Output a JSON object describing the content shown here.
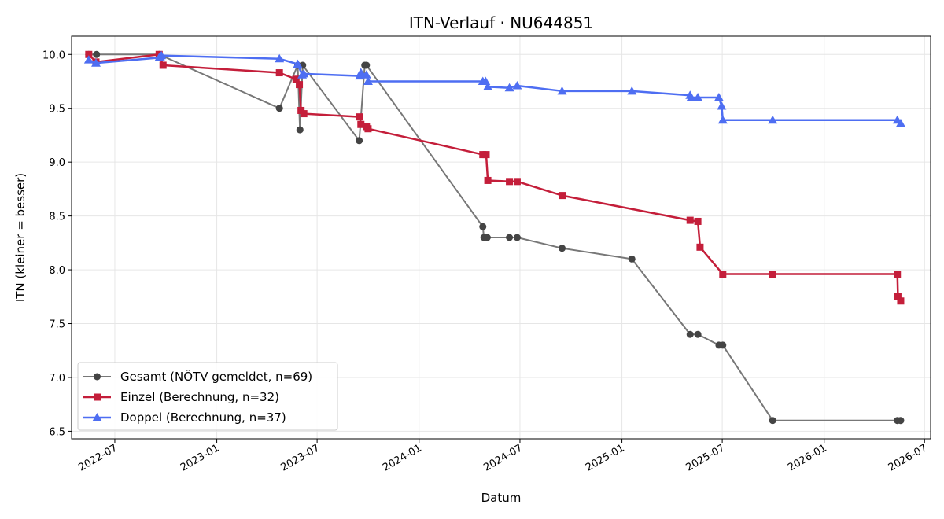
{
  "chart_data": {
    "type": "line",
    "title": "ITN-Verlauf · NU644851",
    "xlabel": "Datum",
    "ylabel": "ITN  (kleiner = besser)",
    "xlim": [
      "2022-04-14",
      "2026-07-12"
    ],
    "ylim": [
      6.43,
      10.17
    ],
    "x_ticks": [
      "2022-07-01",
      "2023-01-01",
      "2023-07-01",
      "2024-01-01",
      "2024-07-01",
      "2025-01-01",
      "2025-07-01",
      "2026-01-01",
      "2026-07-01"
    ],
    "x_tick_labels": [
      "2022-07",
      "2023-01",
      "2023-07",
      "2024-01",
      "2024-07",
      "2025-01",
      "2025-07",
      "2026-01",
      "2026-07"
    ],
    "y_ticks": [
      6.5,
      7.0,
      7.5,
      8.0,
      8.5,
      9.0,
      9.5,
      10.0
    ],
    "y_tick_labels": [
      "6.5",
      "7.0",
      "7.5",
      "8.0",
      "8.5",
      "9.0",
      "9.5",
      "10.0"
    ],
    "grid": true,
    "legend_position": "lower-left",
    "series": [
      {
        "name": "Gesamt (NÖTV gemeldet, n=69)",
        "color": "#777777",
        "marker_color": "#444444",
        "marker": "circle",
        "points": [
          [
            "2022-05-15",
            10.0
          ],
          [
            "2022-05-29",
            10.0
          ],
          [
            "2022-09-19",
            10.0
          ],
          [
            "2023-04-24",
            9.5
          ],
          [
            "2023-05-27",
            9.9
          ],
          [
            "2023-05-31",
            9.3
          ],
          [
            "2023-06-05",
            9.9
          ],
          [
            "2023-09-15",
            9.2
          ],
          [
            "2023-09-25",
            9.9
          ],
          [
            "2023-09-28",
            9.9
          ],
          [
            "2024-04-25",
            8.4
          ],
          [
            "2024-04-27",
            8.3
          ],
          [
            "2024-05-03",
            8.3
          ],
          [
            "2024-06-12",
            8.3
          ],
          [
            "2024-06-26",
            8.3
          ],
          [
            "2024-09-15",
            8.2
          ],
          [
            "2025-01-19",
            8.1
          ],
          [
            "2025-05-04",
            7.4
          ],
          [
            "2025-05-18",
            7.4
          ],
          [
            "2025-06-25",
            7.3
          ],
          [
            "2025-07-02",
            7.3
          ],
          [
            "2025-09-30",
            6.6
          ],
          [
            "2026-05-13",
            6.6
          ],
          [
            "2026-05-19",
            6.6
          ]
        ]
      },
      {
        "name": "Einzel (Berechnung, n=32)",
        "color": "#c41e3a",
        "marker_color": "#c41e3a",
        "marker": "square",
        "points": [
          [
            "2022-05-15",
            10.0
          ],
          [
            "2022-05-28",
            9.93
          ],
          [
            "2022-09-19",
            10.0
          ],
          [
            "2022-09-26",
            9.9
          ],
          [
            "2023-04-24",
            9.83
          ],
          [
            "2023-05-24",
            9.77
          ],
          [
            "2023-05-30",
            9.72
          ],
          [
            "2023-06-02",
            9.48
          ],
          [
            "2023-06-07",
            9.45
          ],
          [
            "2023-09-16",
            9.42
          ],
          [
            "2023-09-18",
            9.35
          ],
          [
            "2023-09-28",
            9.33
          ],
          [
            "2023-10-01",
            9.31
          ],
          [
            "2024-04-25",
            9.07
          ],
          [
            "2024-05-01",
            9.07
          ],
          [
            "2024-05-04",
            8.83
          ],
          [
            "2024-06-12",
            8.82
          ],
          [
            "2024-06-26",
            8.82
          ],
          [
            "2024-09-15",
            8.69
          ],
          [
            "2025-05-04",
            8.46
          ],
          [
            "2025-05-18",
            8.45
          ],
          [
            "2025-05-22",
            8.21
          ],
          [
            "2025-07-02",
            7.96
          ],
          [
            "2025-09-30",
            7.96
          ],
          [
            "2026-05-13",
            7.96
          ],
          [
            "2026-05-14",
            7.75
          ],
          [
            "2026-05-19",
            7.71
          ]
        ]
      },
      {
        "name": "Doppel (Berechnung, n=37)",
        "color": "#4e6ef2",
        "marker_color": "#4e6ef2",
        "marker": "triangle",
        "points": [
          [
            "2022-05-15",
            9.95
          ],
          [
            "2022-05-28",
            9.92
          ],
          [
            "2022-09-19",
            9.97
          ],
          [
            "2022-09-21",
            9.98
          ],
          [
            "2022-09-23",
            9.99
          ],
          [
            "2023-04-24",
            9.96
          ],
          [
            "2023-05-27",
            9.91
          ],
          [
            "2023-06-04",
            9.81
          ],
          [
            "2023-06-07",
            9.82
          ],
          [
            "2023-09-16",
            9.8
          ],
          [
            "2023-09-18",
            9.83
          ],
          [
            "2023-09-28",
            9.81
          ],
          [
            "2023-10-01",
            9.75
          ],
          [
            "2024-04-25",
            9.75
          ],
          [
            "2024-04-30",
            9.75
          ],
          [
            "2024-05-04",
            9.7
          ],
          [
            "2024-06-12",
            9.69
          ],
          [
            "2024-06-26",
            9.71
          ],
          [
            "2024-09-15",
            9.66
          ],
          [
            "2025-01-19",
            9.66
          ],
          [
            "2025-05-04",
            9.62
          ],
          [
            "2025-05-06",
            9.6
          ],
          [
            "2025-05-18",
            9.6
          ],
          [
            "2025-06-25",
            9.6
          ],
          [
            "2025-06-30",
            9.52
          ],
          [
            "2025-07-02",
            9.39
          ],
          [
            "2025-09-30",
            9.39
          ],
          [
            "2026-05-13",
            9.39
          ],
          [
            "2026-05-19",
            9.36
          ]
        ]
      }
    ]
  }
}
